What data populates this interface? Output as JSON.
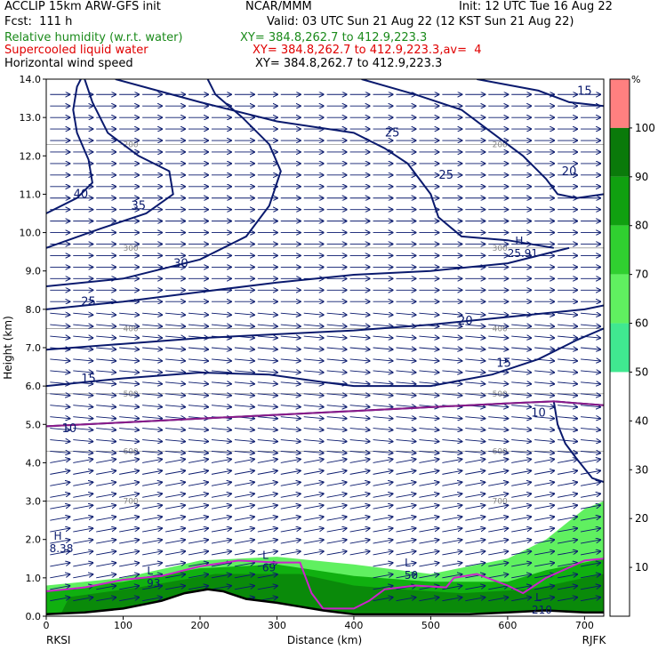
{
  "header": {
    "line1_left": "ACCLIP 15km ARW-GFS init",
    "line1_mid": "NCAR/MMM",
    "line1_right": "Init: 12 UTC Tue 16 Aug 22",
    "line2_left": "Fcst:  111 h",
    "line2_right": "Valid: 03 UTC Sun 21 Aug 22 (12 KST Sun 21 Aug 22)",
    "rh_label": "Relative humidity (w.r.t. water)",
    "rh_xy": "XY= 384.8,262.7 to 412.9,223.3",
    "slw_label": "Supercooled liquid water",
    "slw_xy": "XY= 384.8,262.7 to 412.9,223.3,av=  4",
    "wind_label": "Horizontal wind speed",
    "wind_xy": "XY= 384.8,262.7 to 412.9,223.3"
  },
  "colors": {
    "rh_label": "#1a8a1a",
    "slw_label": "#e00000",
    "wind_label": "#000000",
    "contour": "#0a1a6e",
    "arrows": "#0a1a6e",
    "slw_line": "#cc22cc",
    "terrain": "#000000",
    "pressure_lines": "#999999"
  },
  "chart_data": {
    "type": "cross-section",
    "xlabel": "Distance (km)",
    "ylabel": "Height (km)",
    "xlim": [
      0,
      725
    ],
    "ylim": [
      0,
      14
    ],
    "x_ticks": [
      "0",
      "100",
      "200",
      "300",
      "400",
      "500",
      "600",
      "700"
    ],
    "y_ticks": [
      "0.0",
      "1.0",
      "2.0",
      "3.0",
      "4.0",
      "5.0",
      "6.0",
      "7.0",
      "8.0",
      "9.0",
      "10.0",
      "11.0",
      "12.0",
      "13.0",
      "14.0"
    ],
    "start_label": "RKSI",
    "end_label": "RJFK",
    "terrain_km": [
      [
        0,
        0.05
      ],
      [
        50,
        0.1
      ],
      [
        100,
        0.2
      ],
      [
        150,
        0.4
      ],
      [
        180,
        0.6
      ],
      [
        210,
        0.7
      ],
      [
        230,
        0.65
      ],
      [
        260,
        0.45
      ],
      [
        300,
        0.35
      ],
      [
        330,
        0.25
      ],
      [
        360,
        0.15
      ],
      [
        400,
        0.05
      ],
      [
        450,
        0.05
      ],
      [
        500,
        0.05
      ],
      [
        550,
        0.05
      ],
      [
        600,
        0.1
      ],
      [
        650,
        0.15
      ],
      [
        700,
        0.1
      ],
      [
        725,
        0.1
      ]
    ],
    "pressure_levels": [
      {
        "label": "200",
        "height": 12.3
      },
      {
        "label": "300",
        "height": 9.6
      },
      {
        "label": "400",
        "height": 7.5
      },
      {
        "label": "500",
        "height": 5.8
      },
      {
        "label": "600",
        "height": 4.3
      },
      {
        "label": "700",
        "height": 3.0
      }
    ],
    "wind_contours": [
      {
        "label": "10",
        "points": [
          [
            0,
            4.95
          ],
          [
            100,
            5.05
          ],
          [
            200,
            5.15
          ],
          [
            300,
            5.25
          ],
          [
            400,
            5.35
          ],
          [
            500,
            5.45
          ],
          [
            600,
            5.55
          ],
          [
            660,
            5.6
          ],
          [
            725,
            5.5
          ]
        ]
      },
      {
        "label": "10",
        "points": [
          [
            660,
            5.6
          ],
          [
            665,
            5.0
          ],
          [
            675,
            4.5
          ],
          [
            690,
            4.1
          ],
          [
            710,
            3.6
          ],
          [
            725,
            3.5
          ]
        ]
      },
      {
        "label": "15",
        "points": [
          [
            0,
            6.0
          ],
          [
            100,
            6.2
          ],
          [
            200,
            6.35
          ],
          [
            290,
            6.3
          ],
          [
            360,
            6.1
          ],
          [
            400,
            6.0
          ],
          [
            500,
            6.0
          ],
          [
            580,
            6.3
          ],
          [
            640,
            6.7
          ],
          [
            690,
            7.2
          ],
          [
            725,
            7.5
          ]
        ]
      },
      {
        "label": "20",
        "points": [
          [
            0,
            6.95
          ],
          [
            100,
            7.1
          ],
          [
            200,
            7.25
          ],
          [
            300,
            7.35
          ],
          [
            400,
            7.45
          ],
          [
            500,
            7.6
          ],
          [
            600,
            7.8
          ],
          [
            700,
            8.0
          ],
          [
            725,
            8.1
          ]
        ]
      },
      {
        "label": "25",
        "points": [
          [
            0,
            8.0
          ],
          [
            100,
            8.2
          ],
          [
            200,
            8.45
          ],
          [
            300,
            8.7
          ],
          [
            400,
            8.9
          ],
          [
            500,
            9.0
          ],
          [
            600,
            9.2
          ],
          [
            680,
            9.6
          ]
        ]
      },
      {
        "label": "30",
        "points": [
          [
            0,
            8.6
          ],
          [
            100,
            8.8
          ],
          [
            200,
            9.3
          ],
          [
            260,
            9.9
          ],
          [
            290,
            10.7
          ],
          [
            305,
            11.6
          ],
          [
            290,
            12.3
          ],
          [
            255,
            13.0
          ],
          [
            220,
            13.6
          ],
          [
            210,
            14.0
          ]
        ]
      },
      {
        "label": "35",
        "points": [
          [
            0,
            9.6
          ],
          [
            70,
            10.1
          ],
          [
            130,
            10.5
          ],
          [
            165,
            11.0
          ],
          [
            160,
            11.6
          ],
          [
            120,
            12.0
          ],
          [
            80,
            12.6
          ],
          [
            60,
            13.4
          ],
          [
            50,
            14.0
          ]
        ]
      },
      {
        "label": "40",
        "points": [
          [
            0,
            10.5
          ],
          [
            40,
            10.9
          ],
          [
            60,
            11.3
          ],
          [
            55,
            11.9
          ],
          [
            40,
            12.6
          ],
          [
            35,
            13.2
          ],
          [
            40,
            13.8
          ],
          [
            45,
            14.0
          ]
        ]
      },
      {
        "label": "25",
        "points": [
          [
            90,
            14.0
          ],
          [
            200,
            13.4
          ],
          [
            300,
            12.9
          ],
          [
            400,
            12.6
          ],
          [
            440,
            12.2
          ],
          [
            470,
            11.8
          ],
          [
            500,
            11.0
          ],
          [
            510,
            10.4
          ],
          [
            540,
            9.9
          ],
          [
            600,
            9.8
          ],
          [
            660,
            9.6
          ]
        ]
      },
      {
        "label": "20",
        "points": [
          [
            410,
            14.0
          ],
          [
            480,
            13.6
          ],
          [
            540,
            13.2
          ],
          [
            580,
            12.6
          ],
          [
            620,
            12.0
          ],
          [
            650,
            11.4
          ],
          [
            665,
            11.0
          ],
          [
            690,
            10.9
          ],
          [
            725,
            11.0
          ]
        ]
      },
      {
        "label": "15",
        "points": [
          [
            560,
            14.0
          ],
          [
            640,
            13.7
          ],
          [
            680,
            13.4
          ],
          [
            725,
            13.3
          ]
        ]
      }
    ],
    "contour_labels": [
      {
        "text": "10",
        "x": 30,
        "y": 4.8
      },
      {
        "text": "10",
        "x": 640,
        "y": 5.2
      },
      {
        "text": "15",
        "x": 55,
        "y": 6.1
      },
      {
        "text": "15",
        "x": 595,
        "y": 6.5
      },
      {
        "text": "20",
        "x": 545,
        "y": 7.6
      },
      {
        "text": "25",
        "x": 55,
        "y": 8.1
      },
      {
        "text": "30",
        "x": 175,
        "y": 9.1
      },
      {
        "text": "35",
        "x": 120,
        "y": 10.6
      },
      {
        "text": "40",
        "x": 45,
        "y": 10.9
      },
      {
        "text": "25",
        "x": 450,
        "y": 12.5
      },
      {
        "text": "25",
        "x": 520,
        "y": 11.4
      },
      {
        "text": "20",
        "x": 680,
        "y": 11.5
      },
      {
        "text": "15",
        "x": 700,
        "y": 13.6
      }
    ],
    "extrema": [
      {
        "marker": "H",
        "value": "8.38",
        "x": 15,
        "y": 1.9
      },
      {
        "marker": "H",
        "value": "25.91",
        "x": 615,
        "y": 9.6
      },
      {
        "marker": "L",
        "value": "93",
        "x": 135,
        "y": 1.0
      },
      {
        "marker": "L",
        "value": "69",
        "x": 285,
        "y": 1.4
      },
      {
        "marker": "L",
        "value": "50",
        "x": 470,
        "y": 1.2
      },
      {
        "marker": "L",
        "value": "210",
        "x": 640,
        "y": 0.3
      }
    ],
    "slw_line": [
      [
        0,
        0.65
      ],
      [
        50,
        0.75
      ],
      [
        100,
        0.95
      ],
      [
        150,
        1.05
      ],
      [
        200,
        1.3
      ],
      [
        250,
        1.45
      ],
      [
        300,
        1.4
      ],
      [
        330,
        1.4
      ],
      [
        345,
        0.6
      ],
      [
        360,
        0.2
      ],
      [
        400,
        0.2
      ],
      [
        420,
        0.4
      ],
      [
        440,
        0.7
      ],
      [
        480,
        0.8
      ],
      [
        520,
        0.75
      ],
      [
        530,
        1.0
      ],
      [
        560,
        1.1
      ],
      [
        600,
        0.8
      ],
      [
        620,
        0.6
      ],
      [
        650,
        1.0
      ],
      [
        700,
        1.45
      ],
      [
        725,
        1.5
      ]
    ],
    "rh_scale": {
      "unit": "%",
      "ticks": [
        "10",
        "20",
        "30",
        "40",
        "50",
        "60",
        "70",
        "80",
        "90",
        "100"
      ],
      "colors": [
        "#ffffff",
        "#ffffff",
        "#ffffff",
        "#ffffff",
        "#40e890",
        "#60f060",
        "#30d030",
        "#10b010",
        "#0a8a0a",
        "#ff8080"
      ]
    },
    "rh_regions": [
      {
        "level": 60,
        "points": [
          [
            0,
            0.05
          ],
          [
            0,
            0.8
          ],
          [
            100,
            1.0
          ],
          [
            200,
            1.45
          ],
          [
            300,
            1.55
          ],
          [
            400,
            1.35
          ],
          [
            500,
            1.1
          ],
          [
            600,
            1.5
          ],
          [
            650,
            2.0
          ],
          [
            700,
            2.8
          ],
          [
            725,
            3.0
          ],
          [
            725,
            0.1
          ]
        ]
      },
      {
        "level": 80,
        "points": [
          [
            0,
            0.05
          ],
          [
            0,
            0.65
          ],
          [
            100,
            0.9
          ],
          [
            200,
            1.25
          ],
          [
            300,
            1.35
          ],
          [
            400,
            1.05
          ],
          [
            500,
            0.9
          ],
          [
            600,
            0.9
          ],
          [
            650,
            1.2
          ],
          [
            725,
            1.5
          ],
          [
            725,
            0.1
          ]
        ]
      },
      {
        "level": 90,
        "points": [
          [
            20,
            0.1
          ],
          [
            30,
            0.5
          ],
          [
            120,
            0.75
          ],
          [
            220,
            1.1
          ],
          [
            330,
            1.1
          ],
          [
            400,
            0.8
          ],
          [
            460,
            0.7
          ],
          [
            540,
            0.6
          ],
          [
            630,
            0.7
          ],
          [
            700,
            1.0
          ],
          [
            725,
            1.1
          ],
          [
            725,
            0.1
          ]
        ]
      }
    ],
    "grid": true
  }
}
